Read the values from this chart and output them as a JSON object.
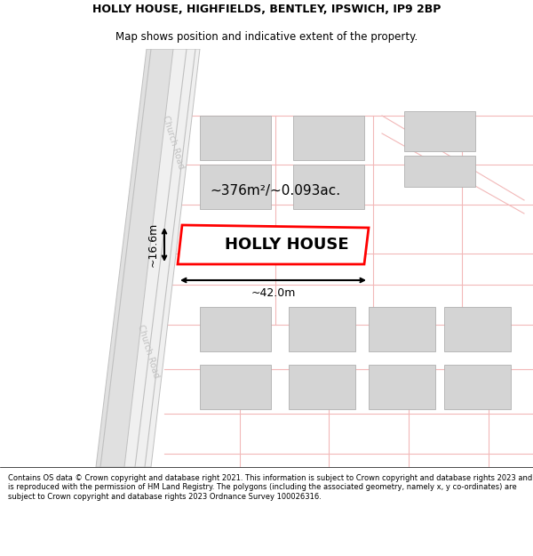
{
  "title_line1": "HOLLY HOUSE, HIGHFIELDS, BENTLEY, IPSWICH, IP9 2BP",
  "title_line2": "Map shows position and indicative extent of the property.",
  "footer_text": "Contains OS data © Crown copyright and database right 2021. This information is subject to Crown copyright and database rights 2023 and is reproduced with the permission of HM Land Registry. The polygons (including the associated geometry, namely x, y co-ordinates) are subject to Crown copyright and database rights 2023 Ordnance Survey 100026316.",
  "map_background": "#ffffff",
  "road_color": "#f2b8b8",
  "building_fill": "#d4d4d4",
  "building_edge": "#b0b0b0",
  "road_label": "Church Road",
  "area_label": "~376m²/~0.093ac.",
  "property_label": "HOLLY HOUSE",
  "dim_width": "~42.0m",
  "dim_height": "~16.6m",
  "title_fontsize": 9.0,
  "subtitle_fontsize": 8.5,
  "footer_fontsize": 6.0
}
